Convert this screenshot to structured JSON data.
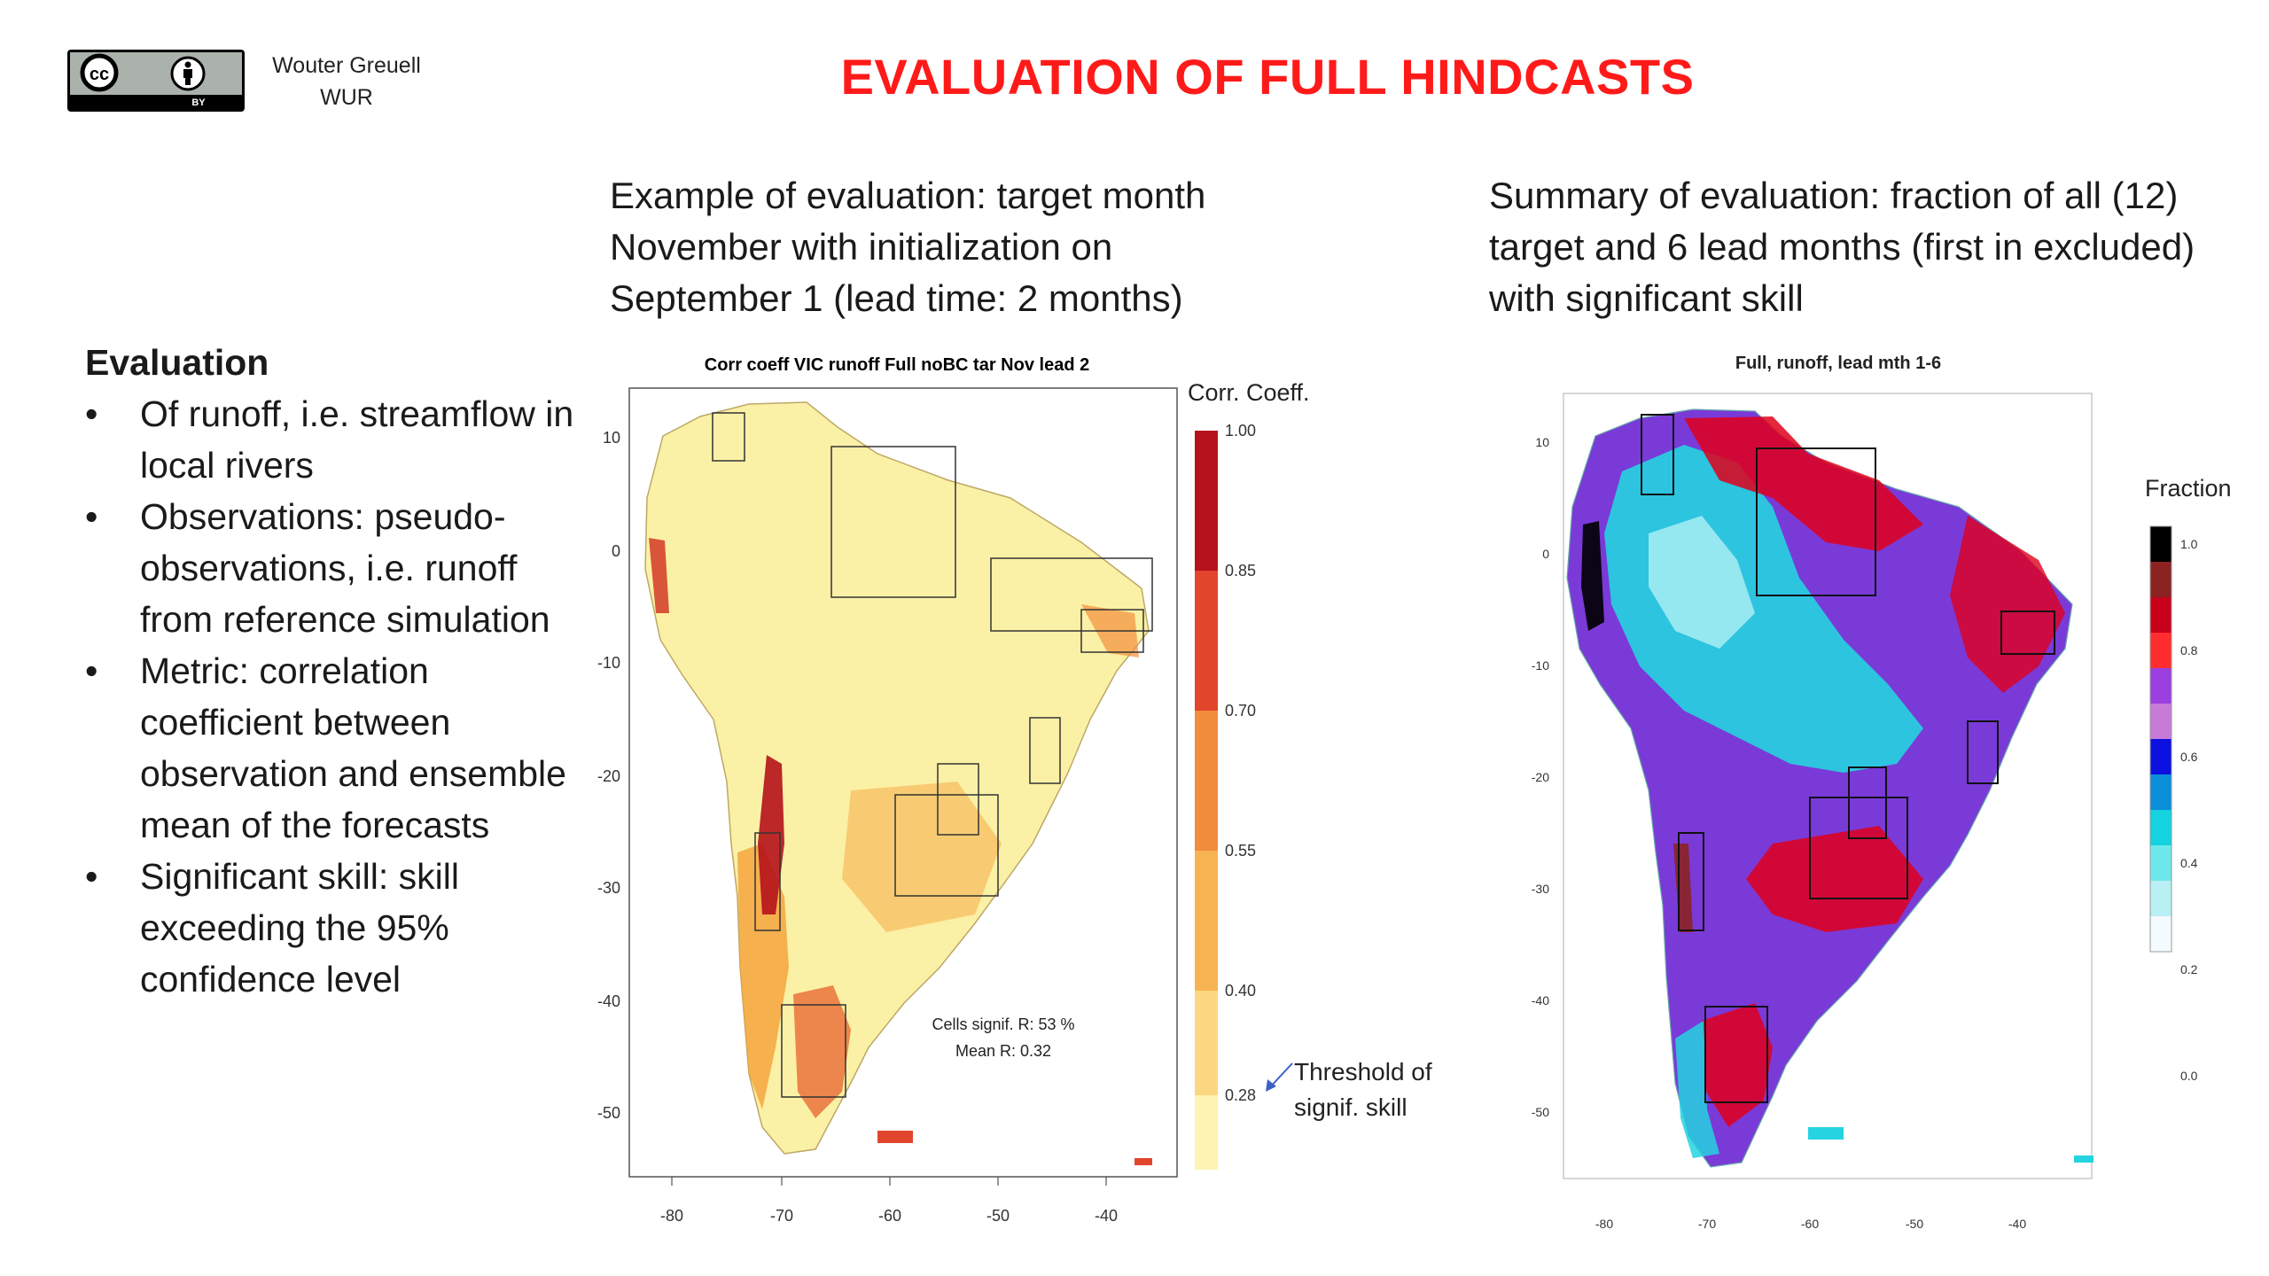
{
  "title": "EVALUATION OF FULL HINDCASTS",
  "author": {
    "name": "Wouter Greuell",
    "org": "WUR"
  },
  "license_badge": {
    "icons": [
      "cc-icon",
      "person-icon"
    ],
    "label": "BY"
  },
  "captions": {
    "left": "Example of evaluation: target month November with initialization on September 1 (lead time: 2 months)",
    "right": "Summary of evaluation: fraction of all (12) target and 6 lead months (first in excluded) with significant skill"
  },
  "notes": {
    "heading": "Evaluation",
    "bullets": [
      "Of runoff, i.e. streamflow in local rivers",
      "Observations: pseudo-observations, i.e. runoff from reference simulation",
      "Metric: correlation coefficient between observation and ensemble mean of the forecasts",
      "Significant skill: skill exceeding the 95% confidence level"
    ]
  },
  "left_map": {
    "title": "Corr coeff VIC runoff Full noBC tar Nov lead 2",
    "x_ticks": [
      "-80",
      "-70",
      "-60",
      "-50",
      "-40"
    ],
    "y_ticks": [
      "10",
      "0",
      "-10",
      "-20",
      "-30",
      "-40",
      "-50"
    ],
    "annotation_signif": "Cells signif. R:  53 %",
    "annotation_mean": "Mean R:  0.32",
    "colorbar": {
      "title": "Corr. Coeff.",
      "ticks": [
        "1.00",
        "0.85",
        "0.70",
        "0.55",
        "0.40",
        "0.28"
      ],
      "colors": [
        "#b5121b",
        "#e1452c",
        "#f28c3d",
        "#f7b351",
        "#fbd780",
        "#fdf3b3"
      ]
    },
    "threshold_note": "Threshold of signif. skill"
  },
  "right_map": {
    "title": "Full, runoff, lead mth 1-6",
    "x_ticks": [
      "-80",
      "-70",
      "-60",
      "-50",
      "-40"
    ],
    "y_ticks": [
      "10",
      "0",
      "-10",
      "-20",
      "-30",
      "-40",
      "-50"
    ],
    "colorbar": {
      "title": "Fraction",
      "ticks": [
        "1.0",
        "0.8",
        "0.6",
        "0.4",
        "0.2",
        "0.0"
      ],
      "colors": [
        "#000000",
        "#8b2323",
        "#e0001b",
        "#ff2d2d",
        "#9b3fe0",
        "#c77ad8",
        "#0a10e0",
        "#0a8ed8",
        "#14d2e0",
        "#6ee8ea",
        "#b8f0f4",
        "#f4fbff"
      ]
    }
  }
}
